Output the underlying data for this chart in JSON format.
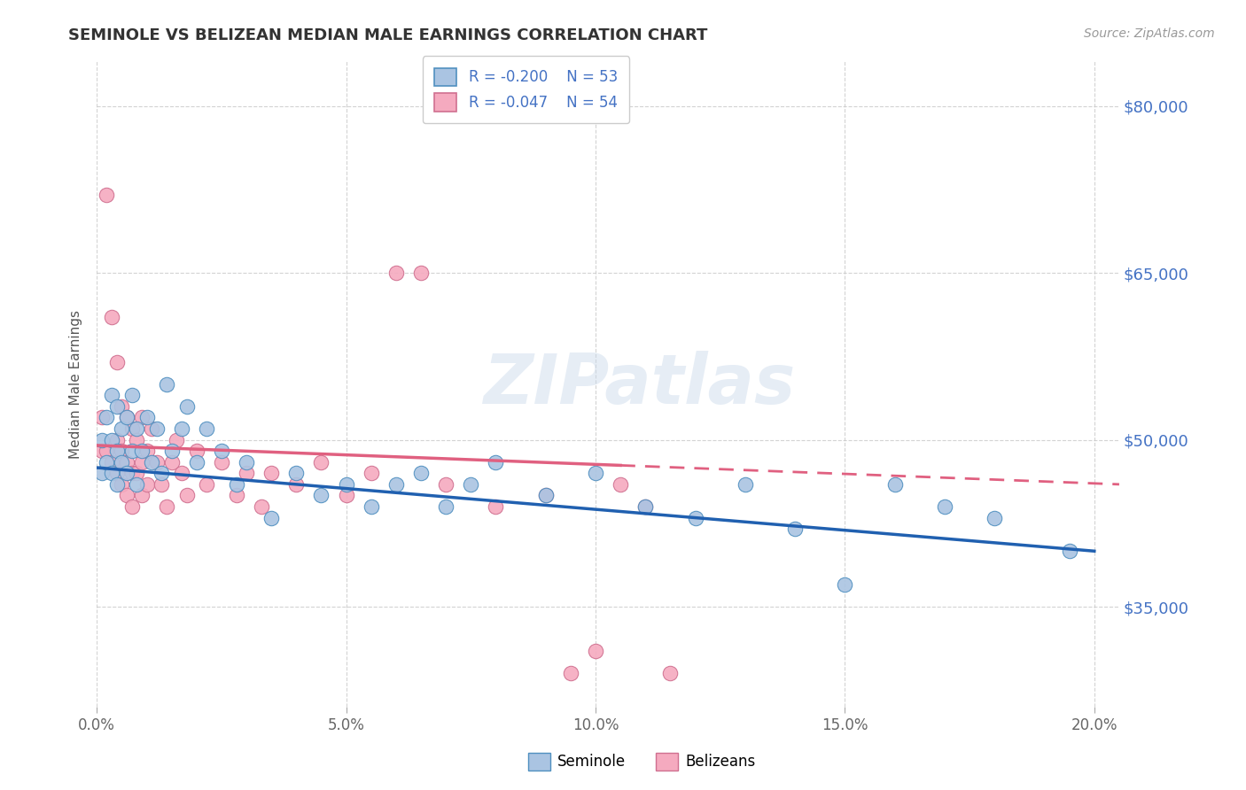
{
  "title": "SEMINOLE VS BELIZEAN MEDIAN MALE EARNINGS CORRELATION CHART",
  "source_text": "Source: ZipAtlas.com",
  "ylabel": "Median Male Earnings",
  "xlim": [
    0.0,
    0.205
  ],
  "ylim": [
    26000,
    84000
  ],
  "xtick_labels": [
    "0.0%",
    "5.0%",
    "10.0%",
    "15.0%",
    "20.0%"
  ],
  "xtick_values": [
    0.0,
    0.05,
    0.1,
    0.15,
    0.2
  ],
  "ytick_values": [
    35000,
    50000,
    65000,
    80000
  ],
  "ytick_labels": [
    "$35,000",
    "$50,000",
    "$65,000",
    "$80,000"
  ],
  "grid_color": "#c8c8c8",
  "background_color": "#ffffff",
  "watermark": "ZIPatlas",
  "seminole_color": "#aac4e2",
  "belizean_color": "#f5aabf",
  "seminole_line_color": "#2060b0",
  "belizean_line_color": "#e06080",
  "seminole_x": [
    0.001,
    0.001,
    0.002,
    0.002,
    0.003,
    0.003,
    0.003,
    0.004,
    0.004,
    0.004,
    0.005,
    0.005,
    0.006,
    0.006,
    0.007,
    0.007,
    0.008,
    0.008,
    0.009,
    0.01,
    0.011,
    0.012,
    0.013,
    0.014,
    0.015,
    0.017,
    0.018,
    0.02,
    0.022,
    0.025,
    0.028,
    0.03,
    0.035,
    0.04,
    0.045,
    0.05,
    0.055,
    0.06,
    0.065,
    0.07,
    0.075,
    0.08,
    0.09,
    0.1,
    0.11,
    0.12,
    0.13,
    0.14,
    0.15,
    0.16,
    0.17,
    0.18,
    0.195
  ],
  "seminole_y": [
    50000,
    47000,
    52000,
    48000,
    54000,
    50000,
    47000,
    53000,
    49000,
    46000,
    51000,
    48000,
    52000,
    47000,
    54000,
    49000,
    51000,
    46000,
    49000,
    52000,
    48000,
    51000,
    47000,
    55000,
    49000,
    51000,
    53000,
    48000,
    51000,
    49000,
    46000,
    48000,
    43000,
    47000,
    45000,
    46000,
    44000,
    46000,
    47000,
    44000,
    46000,
    48000,
    45000,
    47000,
    44000,
    43000,
    46000,
    42000,
    37000,
    46000,
    44000,
    43000,
    40000
  ],
  "belizean_x": [
    0.001,
    0.001,
    0.002,
    0.002,
    0.003,
    0.003,
    0.004,
    0.004,
    0.004,
    0.005,
    0.005,
    0.005,
    0.006,
    0.006,
    0.006,
    0.007,
    0.007,
    0.007,
    0.008,
    0.008,
    0.009,
    0.009,
    0.009,
    0.01,
    0.01,
    0.011,
    0.012,
    0.013,
    0.014,
    0.015,
    0.016,
    0.017,
    0.018,
    0.02,
    0.022,
    0.025,
    0.028,
    0.03,
    0.033,
    0.035,
    0.04,
    0.045,
    0.05,
    0.055,
    0.06,
    0.065,
    0.07,
    0.08,
    0.09,
    0.095,
    0.1,
    0.105,
    0.11,
    0.115
  ],
  "belizean_y": [
    52000,
    49000,
    72000,
    49000,
    61000,
    48000,
    57000,
    50000,
    47000,
    53000,
    49000,
    46000,
    52000,
    48000,
    45000,
    51000,
    47000,
    44000,
    50000,
    47000,
    52000,
    48000,
    45000,
    49000,
    46000,
    51000,
    48000,
    46000,
    44000,
    48000,
    50000,
    47000,
    45000,
    49000,
    46000,
    48000,
    45000,
    47000,
    44000,
    47000,
    46000,
    48000,
    45000,
    47000,
    65000,
    65000,
    46000,
    44000,
    45000,
    29000,
    31000,
    46000,
    44000,
    29000
  ],
  "seminole_line_x0": 0.0,
  "seminole_line_y0": 47500,
  "seminole_line_x1": 0.2,
  "seminole_line_y1": 40000,
  "belizean_line_x0": 0.0,
  "belizean_line_y0": 49500,
  "belizean_line_x1_solid": 0.105,
  "belizean_line_x1_dash": 0.205,
  "belizean_line_y1": 46000
}
